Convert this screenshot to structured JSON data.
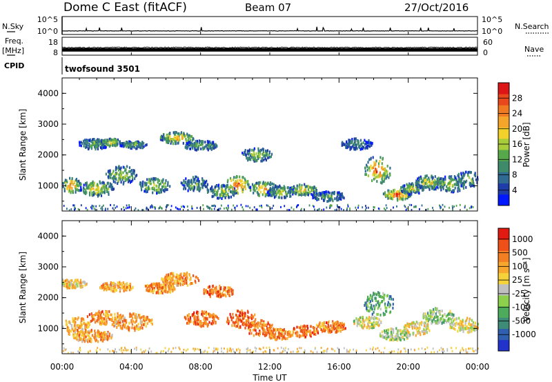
{
  "header": {
    "station": "Dome C East (fitACF)",
    "beam": "Beam 07",
    "date": "27/Oct/2016"
  },
  "left_labels": {
    "nsky": "N.Sky",
    "freq": "Freq.",
    "freq_unit": "[MHz]",
    "cpid": "CPID"
  },
  "right_labels": {
    "nsearch": "N.Search",
    "nave": "Nave"
  },
  "cpid_text": "twofsound 3501",
  "chart_data": [
    {
      "type": "line",
      "panel": "noise",
      "yticks": [
        "10^5",
        "10^0"
      ],
      "yticks_right": [
        "10^5",
        "10^0"
      ],
      "y_scale": "log",
      "series": [
        {
          "name": "N.Sky",
          "style": "solid",
          "level_exp": 1.0
        },
        {
          "name": "N.Search",
          "style": "dotted"
        }
      ]
    },
    {
      "type": "line",
      "panel": "freq-nave",
      "yticks": [
        "18",
        "8"
      ],
      "yticks_right": [
        "60",
        "0"
      ],
      "ylim": [
        8,
        18
      ],
      "ylim_right": [
        0,
        60
      ],
      "series": [
        {
          "name": "Freq.",
          "style": "solid",
          "band": [
            10,
            12
          ]
        },
        {
          "name": "Nave",
          "style": "dotted"
        }
      ]
    },
    {
      "type": "heatmap",
      "panel": "power",
      "ylabel": "Slant Range [km]",
      "yticks": [
        "1000",
        "2000",
        "3000",
        "4000"
      ],
      "ylim": [
        180,
        4500
      ],
      "colorbar": {
        "label": "Power [dB]",
        "ticks": [
          "4",
          "8",
          "12",
          "16",
          "20",
          "24",
          "28"
        ],
        "colors": [
          "#0018ff",
          "#1f3da8",
          "#2f6a92",
          "#3f8a6a",
          "#57a84a",
          "#a8cc3a",
          "#f2d12a",
          "#f4a52a",
          "#f07a22",
          "#e8481c",
          "#dc1616"
        ]
      },
      "blobs": [
        [
          0.5,
          1000,
          0.6,
          250,
          0.8
        ],
        [
          1.8,
          2350,
          0.9,
          170,
          0.45
        ],
        [
          2.0,
          900,
          1.0,
          260,
          0.65
        ],
        [
          2.8,
          2400,
          0.6,
          130,
          0.7
        ],
        [
          3.4,
          1350,
          0.9,
          300,
          0.55
        ],
        [
          4.1,
          2320,
          0.8,
          120,
          0.5
        ],
        [
          5.3,
          1000,
          0.9,
          250,
          0.6
        ],
        [
          6.6,
          2550,
          1.0,
          190,
          0.75
        ],
        [
          8.0,
          2300,
          1.0,
          160,
          0.5
        ],
        [
          7.6,
          1050,
          0.8,
          240,
          0.45
        ],
        [
          9.2,
          800,
          0.9,
          230,
          0.55
        ],
        [
          10.1,
          1020,
          0.7,
          290,
          0.9
        ],
        [
          11.2,
          2000,
          0.9,
          220,
          0.55
        ],
        [
          11.6,
          900,
          0.8,
          240,
          0.75
        ],
        [
          12.6,
          800,
          0.8,
          200,
          0.55
        ],
        [
          13.9,
          860,
          0.8,
          180,
          0.7
        ],
        [
          15.4,
          650,
          1.0,
          160,
          0.4
        ],
        [
          17.0,
          2350,
          0.9,
          190,
          0.35
        ],
        [
          18.2,
          1500,
          0.8,
          450,
          0.85
        ],
        [
          19.3,
          700,
          0.8,
          180,
          0.95
        ],
        [
          20.2,
          900,
          0.7,
          190,
          0.55
        ],
        [
          21.2,
          1100,
          0.9,
          230,
          0.6
        ],
        [
          22.4,
          1050,
          0.9,
          260,
          0.55
        ],
        [
          23.4,
          1200,
          0.7,
          260,
          0.5
        ]
      ]
    },
    {
      "type": "heatmap",
      "panel": "velocity",
      "xlabel": "Time UT",
      "ylabel": "Slant Range [km]",
      "xticks": [
        "00:00",
        "04:00",
        "08:00",
        "12:00",
        "16:00",
        "20:00",
        "00:00"
      ],
      "xlim": [
        0,
        24
      ],
      "yticks": [
        "1000",
        "2000",
        "3000",
        "4000"
      ],
      "ylim": [
        180,
        4500
      ],
      "colorbar": {
        "label": "Velocity [m s⁻¹]",
        "ticks": [
          "1000",
          "500",
          "100",
          "25",
          "-25",
          "-100",
          "-500",
          "-1000"
        ],
        "colors": [
          "#2233cc",
          "#2f5fae",
          "#3e8c78",
          "#4dab5c",
          "#8cd04c",
          "#c0c0c0",
          "#f6d23a",
          "#f7a62e",
          "#f47f22",
          "#ee5018",
          "#e21a12"
        ]
      },
      "blobs": [
        [
          0.5,
          2450,
          0.9,
          150,
          0.6
        ],
        [
          0.8,
          1050,
          0.8,
          300,
          0.65
        ],
        [
          1.7,
          750,
          1.2,
          200,
          0.7
        ],
        [
          2.4,
          1350,
          1.0,
          230,
          0.75
        ],
        [
          3.1,
          2350,
          1.0,
          150,
          0.7
        ],
        [
          4.0,
          1200,
          1.2,
          280,
          0.7
        ],
        [
          5.6,
          2300,
          1.0,
          160,
          0.75
        ],
        [
          6.8,
          2600,
          1.1,
          220,
          0.7
        ],
        [
          8.0,
          1300,
          1.0,
          250,
          0.8
        ],
        [
          9.0,
          2200,
          0.9,
          200,
          0.8
        ],
        [
          10.3,
          1300,
          0.9,
          300,
          0.85
        ],
        [
          11.4,
          1000,
          0.8,
          260,
          0.8
        ],
        [
          12.5,
          800,
          0.8,
          180,
          0.75
        ],
        [
          14.0,
          900,
          0.8,
          190,
          0.8
        ],
        [
          15.5,
          1050,
          0.9,
          190,
          0.75
        ],
        [
          17.6,
          1200,
          0.8,
          200,
          0.5
        ],
        [
          18.3,
          1800,
          0.9,
          380,
          0.3
        ],
        [
          19.2,
          800,
          0.9,
          200,
          0.45
        ],
        [
          20.5,
          1000,
          0.8,
          230,
          0.55
        ],
        [
          21.7,
          1400,
          0.9,
          260,
          0.4
        ],
        [
          23.2,
          1100,
          0.9,
          250,
          0.55
        ]
      ]
    }
  ]
}
